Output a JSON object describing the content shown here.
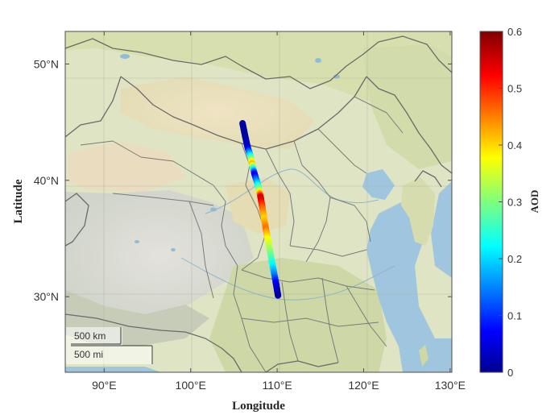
{
  "map": {
    "x_label": "Longitude",
    "y_label": "Latitude",
    "lon_range": [
      85.5,
      130.2
    ],
    "lat_range": [
      23.5,
      52.8
    ],
    "x_ticks": [
      {
        "value": 90,
        "label": "90°E"
      },
      {
        "value": 100,
        "label": "100°E"
      },
      {
        "value": 110,
        "label": "110°E"
      },
      {
        "value": 120,
        "label": "120°E"
      },
      {
        "value": 130,
        "label": "130°E"
      }
    ],
    "y_ticks": [
      {
        "value": 30,
        "label": "30°N"
      },
      {
        "value": 40,
        "label": "40°N"
      },
      {
        "value": 50,
        "label": "50°N"
      }
    ],
    "basemap": "shaded-relief",
    "scalebar": {
      "km_label": "500 km",
      "mi_label": "500 mi"
    }
  },
  "colorbar": {
    "label": "AOD",
    "range": [
      0,
      0.6
    ],
    "ticks": [
      {
        "value": 0,
        "label": "0"
      },
      {
        "value": 0.1,
        "label": "0.1"
      },
      {
        "value": 0.2,
        "label": "0.2"
      },
      {
        "value": 0.3,
        "label": "0.3"
      },
      {
        "value": 0.4,
        "label": "0.4"
      },
      {
        "value": 0.5,
        "label": "0.5"
      },
      {
        "value": 0.6,
        "label": "0.6"
      }
    ],
    "colormap": "jet"
  },
  "chart_data": {
    "type": "scatter",
    "xlabel": "Longitude",
    "ylabel": "Latitude",
    "xlim": [
      85.5,
      130.2
    ],
    "ylim": [
      23.5,
      52.8
    ],
    "color_label": "AOD",
    "color_range": [
      0,
      0.6
    ],
    "track": [
      {
        "lon": 106.0,
        "lat": 44.9,
        "aod": 0.02
      },
      {
        "lon": 106.3,
        "lat": 43.8,
        "aod": 0.02
      },
      {
        "lon": 106.6,
        "lat": 42.8,
        "aod": 0.04
      },
      {
        "lon": 106.9,
        "lat": 42.1,
        "aod": 0.22
      },
      {
        "lon": 107.1,
        "lat": 41.4,
        "aod": 0.42
      },
      {
        "lon": 107.4,
        "lat": 40.5,
        "aod": 0.05
      },
      {
        "lon": 107.7,
        "lat": 39.8,
        "aod": 0.18
      },
      {
        "lon": 107.9,
        "lat": 39.2,
        "aod": 0.3
      },
      {
        "lon": 108.1,
        "lat": 38.5,
        "aod": 0.56
      },
      {
        "lon": 108.3,
        "lat": 37.6,
        "aod": 0.47
      },
      {
        "lon": 108.5,
        "lat": 36.7,
        "aod": 0.4
      },
      {
        "lon": 108.7,
        "lat": 35.8,
        "aod": 0.46
      },
      {
        "lon": 108.9,
        "lat": 35.0,
        "aod": 0.38
      },
      {
        "lon": 109.1,
        "lat": 34.2,
        "aod": 0.33
      },
      {
        "lon": 109.3,
        "lat": 33.4,
        "aod": 0.28
      },
      {
        "lon": 109.5,
        "lat": 32.6,
        "aod": 0.22
      },
      {
        "lon": 109.7,
        "lat": 31.8,
        "aod": 0.15
      },
      {
        "lon": 109.9,
        "lat": 31.0,
        "aod": 0.06
      },
      {
        "lon": 110.1,
        "lat": 30.1,
        "aod": 0.02
      }
    ]
  }
}
